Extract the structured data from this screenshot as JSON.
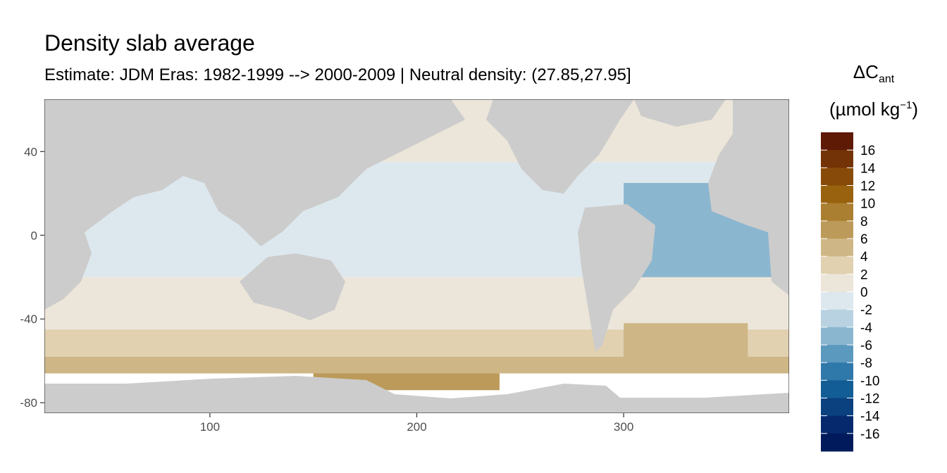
{
  "chart_data": {
    "type": "heatmap",
    "title": "Density slab average",
    "subtitle": "Estimate: JDM Eras: 1982-1999 --> 2000-2009 | Neutral density: (27.85,27.95]",
    "xlabel": "",
    "ylabel": "",
    "xlim": [
      20,
      380
    ],
    "ylim": [
      -85,
      65
    ],
    "x_ticks": [
      100,
      200,
      300
    ],
    "y_ticks": [
      40,
      0,
      -40,
      -80
    ],
    "grid": false,
    "legend": {
      "placement": "right",
      "title_main": "ΔC",
      "title_sub": "ant",
      "title_unit_prefix": "(µmol kg",
      "title_unit_sup": "−1",
      "title_unit_suffix": ")",
      "labels": [
        "16",
        "14",
        "12",
        "10",
        "8",
        "6",
        "4",
        "2",
        "0",
        "-2",
        "-4",
        "-6",
        "-8",
        "-10",
        "-12",
        "-14",
        "-16"
      ],
      "colors": [
        "#5e1a05",
        "#743306",
        "#874a08",
        "#99620f",
        "#ab7f31",
        "#bc9a59",
        "#ceb686",
        "#e1d1b1",
        "#ece6da",
        "#dde8ee",
        "#b8d2e1",
        "#8bb6cf",
        "#5c99bf",
        "#2f78aa",
        "#125d95",
        "#0b417f",
        "#06296d",
        "#001a5c"
      ]
    },
    "bands": [
      {
        "lat_top": 65,
        "lat_bottom": 35,
        "lon_min": 20,
        "lon_max": 380,
        "value": 1
      },
      {
        "lat_top": 35,
        "lat_bottom": -20,
        "lon_min": 20,
        "lon_max": 380,
        "value": -1
      },
      {
        "lat_top": 25,
        "lat_bottom": -40,
        "lon_min": 300,
        "lon_max": 380,
        "value": -5
      },
      {
        "lat_top": -20,
        "lat_bottom": -45,
        "lon_min": 20,
        "lon_max": 380,
        "value": 1
      },
      {
        "lat_top": -45,
        "lat_bottom": -58,
        "lon_min": 20,
        "lon_max": 380,
        "value": 3
      },
      {
        "lat_top": -58,
        "lat_bottom": -66,
        "lon_min": 20,
        "lon_max": 380,
        "value": 5
      },
      {
        "lat_top": -66,
        "lat_bottom": -74,
        "lon_min": 150,
        "lon_max": 240,
        "value": 7
      },
      {
        "lat_top": -42,
        "lat_bottom": -60,
        "lon_min": 300,
        "lon_max": 360,
        "value": 5
      }
    ],
    "land_color": "#cccccc"
  }
}
